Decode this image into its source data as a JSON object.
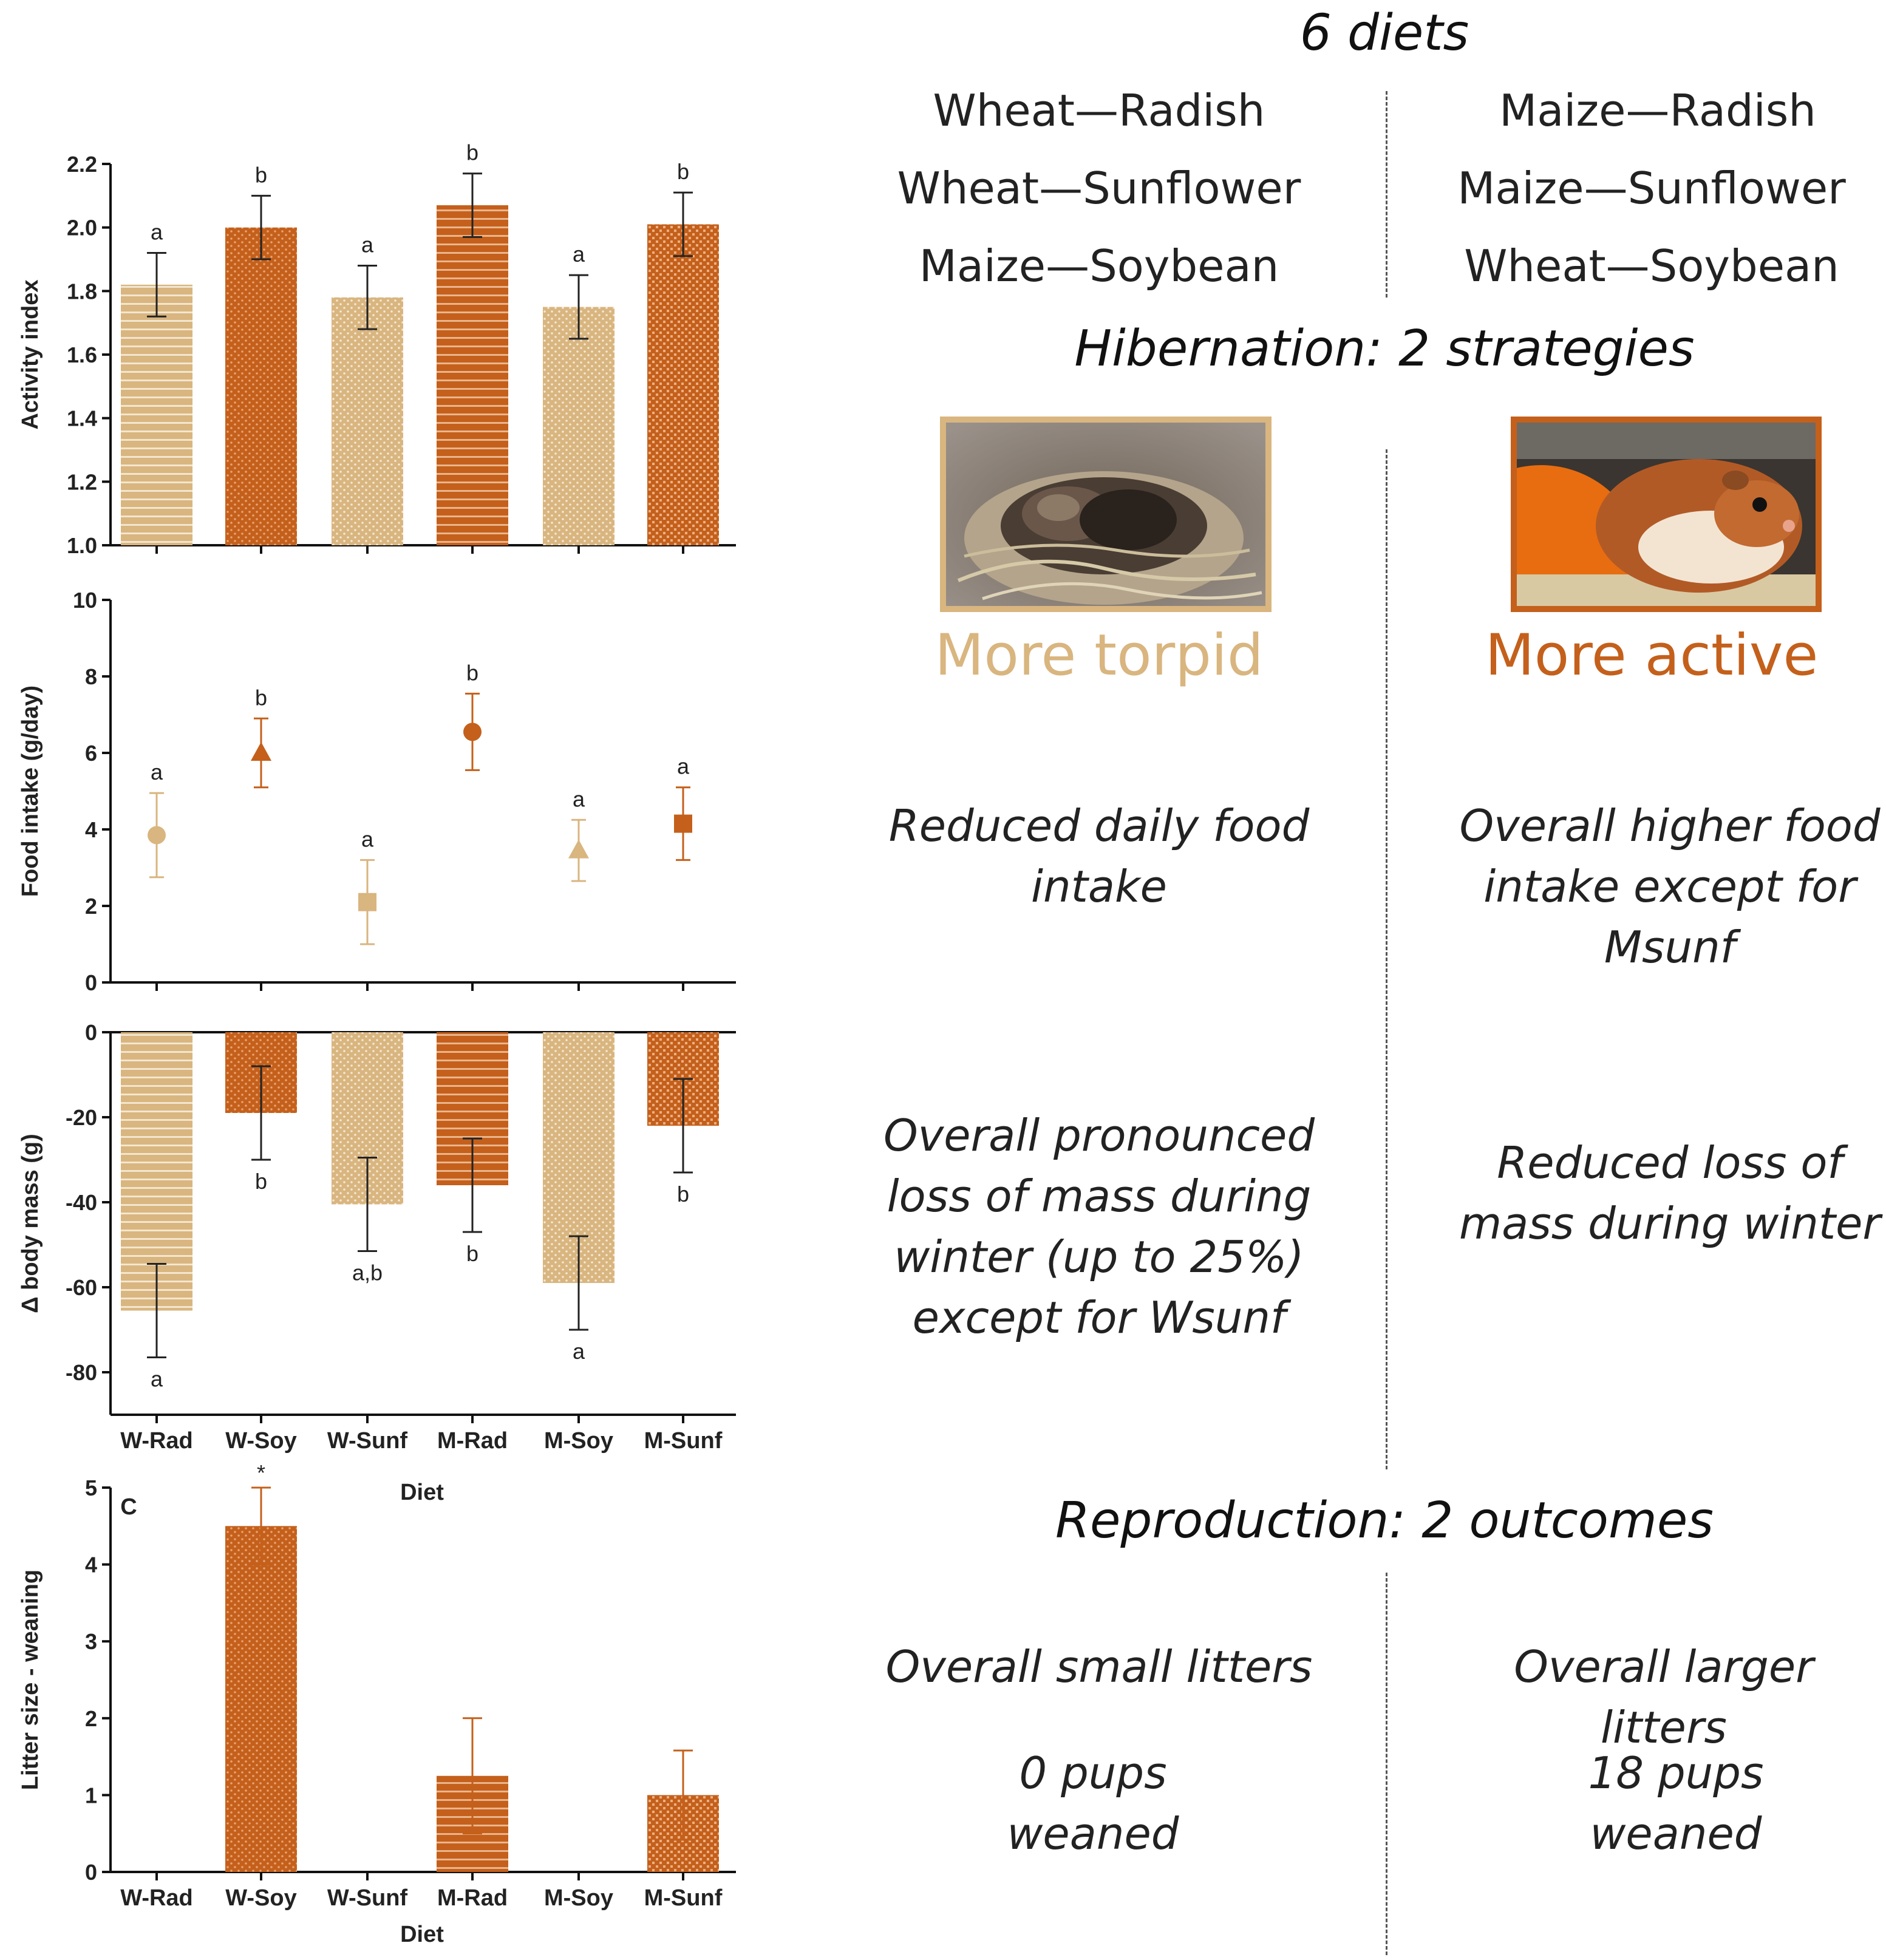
{
  "colors": {
    "torpid": "#d9b57f",
    "torpid_dark": "#c9a26b",
    "active": "#c4601b",
    "active_dark": "#b0521a",
    "axis": "#111111"
  },
  "right_panel": {
    "diets_heading": "6 diets",
    "diets_left": [
      "Wheat—Radish",
      "Wheat—Sunflower",
      "Maize—Soybean"
    ],
    "diets_right": [
      "Maize—Radish",
      "Maize—Sunflower",
      "Wheat—Soybean"
    ],
    "hibernation_heading": "Hibernation: 2 strategies",
    "strategy_left": "More torpid",
    "strategy_right": "More active",
    "food_left": "Reduced daily food intake",
    "food_right": "Overall higher food intake except for Msunf",
    "mass_left": "Overall pronounced loss of mass during winter (up to 25%) except for Wsunf",
    "mass_right": "Reduced loss of mass during winter",
    "reproduction_heading": "Reproduction: 2 outcomes",
    "litters_left": "Overall small litters",
    "litters_right": "Overall larger litters",
    "pups_left": "0 pups weaned",
    "pups_right": "18 pups weaned"
  },
  "chart_data": [
    {
      "type": "bar",
      "categories": [
        "W-Rad",
        "W-Soy",
        "W-Sunf",
        "M-Rad",
        "M-Soy",
        "M-Sunf"
      ],
      "values": [
        1.82,
        2.0,
        1.78,
        2.07,
        1.75,
        2.01
      ],
      "errors": [
        0.1,
        0.1,
        0.1,
        0.1,
        0.1,
        0.1
      ],
      "letters": [
        "a",
        "b",
        "a",
        "b",
        "a",
        "b"
      ],
      "groups": [
        "torpid",
        "active",
        "torpid",
        "active",
        "torpid",
        "active"
      ],
      "patterns": [
        "hlines",
        "dots",
        "dots",
        "hlines",
        "dots",
        "checks"
      ],
      "ylabel": "Activity index",
      "xlabel": "",
      "ylim": [
        1.0,
        2.2
      ],
      "yticks": [
        "1.0",
        "1.2",
        "1.4",
        "1.6",
        "1.8",
        "2.0",
        "2.2"
      ],
      "panel_label": ""
    },
    {
      "type": "scatter",
      "categories": [
        "W-Rad",
        "W-Soy",
        "W-Sunf",
        "M-Rad",
        "M-Soy",
        "M-Sunf"
      ],
      "values": [
        3.85,
        6.0,
        2.1,
        6.55,
        3.45,
        4.15
      ],
      "errors": [
        1.1,
        0.9,
        1.1,
        1.0,
        0.8,
        0.95
      ],
      "letters": [
        "a",
        "b",
        "a",
        "b",
        "a",
        "a"
      ],
      "groups": [
        "torpid",
        "active",
        "torpid",
        "active",
        "torpid",
        "active"
      ],
      "markers": [
        "circle",
        "triangle",
        "square",
        "circle",
        "triangle",
        "square"
      ],
      "ylabel": "Food intake (g/day)",
      "xlabel": "",
      "ylim": [
        0,
        10
      ],
      "yticks": [
        "0",
        "2",
        "4",
        "6",
        "8",
        "10"
      ],
      "panel_label": ""
    },
    {
      "type": "bar",
      "categories": [
        "W-Rad",
        "W-Soy",
        "W-Sunf",
        "M-Rad",
        "M-Soy",
        "M-Sunf"
      ],
      "values": [
        -65.5,
        -19,
        -40.5,
        -36,
        -59,
        -22
      ],
      "errors": [
        11,
        11,
        11,
        11,
        11,
        11
      ],
      "letters": [
        "a",
        "b",
        "a,b",
        "b",
        "a",
        "b"
      ],
      "groups": [
        "torpid",
        "active",
        "torpid",
        "active",
        "torpid",
        "active"
      ],
      "patterns": [
        "hlines",
        "dots",
        "dots",
        "hlines",
        "dots",
        "checks"
      ],
      "ylabel": "Δ  body mass (g)",
      "xlabel": "Diet",
      "ylim": [
        -90,
        0
      ],
      "yticks": [
        "-80",
        "-60",
        "-40",
        "-20",
        "0"
      ],
      "panel_label": ""
    },
    {
      "type": "bar",
      "categories": [
        "W-Rad",
        "W-Soy",
        "W-Sunf",
        "M-Rad",
        "M-Soy",
        "M-Sunf"
      ],
      "values": [
        0,
        4.5,
        0,
        1.25,
        0,
        1.0
      ],
      "errors": [
        0,
        0.5,
        0,
        0.75,
        0,
        0.58
      ],
      "letters": [
        "",
        "*",
        "",
        "",
        "",
        ""
      ],
      "groups": [
        "torpid",
        "active",
        "torpid",
        "active",
        "torpid",
        "active"
      ],
      "patterns": [
        "hlines",
        "dots",
        "dots",
        "hlines",
        "dots",
        "checks"
      ],
      "ylabel": "Litter size - weaning",
      "xlabel": "Diet",
      "ylim": [
        0,
        5
      ],
      "yticks": [
        "0",
        "1",
        "2",
        "3",
        "4",
        "5"
      ],
      "panel_label": "C"
    }
  ]
}
